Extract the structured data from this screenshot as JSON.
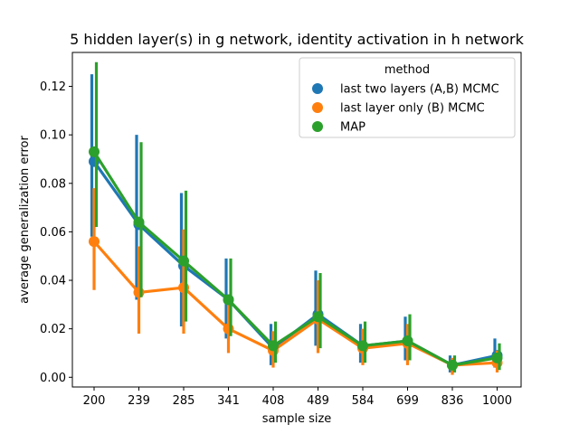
{
  "chart_data": {
    "type": "line",
    "title": "5 hidden layer(s) in g network, identity activation in h network",
    "xlabel": "sample size",
    "ylabel": "average generalization error",
    "categories": [
      "200",
      "239",
      "285",
      "341",
      "408",
      "489",
      "584",
      "699",
      "836",
      "1000"
    ],
    "ylim": [
      -0.004,
      0.134
    ],
    "yticks": [
      0.0,
      0.02,
      0.04,
      0.06,
      0.08,
      0.1,
      0.12
    ],
    "ytick_labels": [
      "0.00",
      "0.02",
      "0.04",
      "0.06",
      "0.08",
      "0.10",
      "0.12"
    ],
    "legend": {
      "title": "method",
      "position": "upper-right"
    },
    "series": [
      {
        "name": "last two layers (A,B) MCMC",
        "color": "#1f77b4",
        "values": [
          0.089,
          0.063,
          0.046,
          0.032,
          0.012,
          0.026,
          0.013,
          0.015,
          0.005,
          0.009
        ],
        "err_low": [
          0.058,
          0.032,
          0.021,
          0.016,
          0.005,
          0.013,
          0.006,
          0.007,
          0.002,
          0.004
        ],
        "err_high": [
          0.125,
          0.1,
          0.076,
          0.049,
          0.022,
          0.044,
          0.022,
          0.025,
          0.009,
          0.016
        ]
      },
      {
        "name": "last layer only (B) MCMC",
        "color": "#ff7f0e",
        "values": [
          0.056,
          0.035,
          0.037,
          0.02,
          0.011,
          0.024,
          0.012,
          0.014,
          0.005,
          0.006
        ],
        "err_low": [
          0.036,
          0.018,
          0.018,
          0.01,
          0.004,
          0.01,
          0.005,
          0.005,
          0.001,
          0.002
        ],
        "err_high": [
          0.078,
          0.054,
          0.061,
          0.031,
          0.019,
          0.04,
          0.02,
          0.022,
          0.008,
          0.011
        ]
      },
      {
        "name": "MAP",
        "color": "#2ca02c",
        "values": [
          0.093,
          0.064,
          0.048,
          0.032,
          0.013,
          0.025,
          0.013,
          0.015,
          0.005,
          0.008
        ],
        "err_low": [
          0.062,
          0.033,
          0.023,
          0.017,
          0.006,
          0.012,
          0.006,
          0.007,
          0.002,
          0.003
        ],
        "err_high": [
          0.13,
          0.097,
          0.077,
          0.049,
          0.023,
          0.043,
          0.023,
          0.026,
          0.009,
          0.014
        ]
      }
    ]
  }
}
